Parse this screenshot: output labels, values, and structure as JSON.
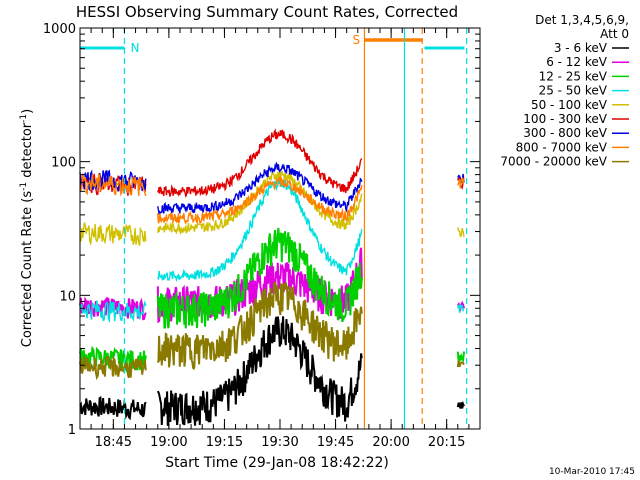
{
  "chart_data": {
    "type": "line",
    "title": "HESSI Observing Summary Count Rates, Corrected",
    "xlabel": "Start Time (29-Jan-08 18:42:22)",
    "ylabel_main": "Corrected Count Rate (s",
    "ylabel_exp1": "-1",
    "ylabel_mid": " detector",
    "ylabel_exp2": "-1",
    "ylabel_end": ")",
    "yscale": "log",
    "ylim": [
      1,
      1000
    ],
    "xlim_minutes": [
      18.6,
      20.4
    ],
    "x_ticks": [
      {
        "label": "18:45",
        "value": 18.75
      },
      {
        "label": "19:00",
        "value": 19.0
      },
      {
        "label": "19:15",
        "value": 19.25
      },
      {
        "label": "19:30",
        "value": 19.5
      },
      {
        "label": "19:45",
        "value": 19.75
      },
      {
        "label": "20:00",
        "value": 20.0
      },
      {
        "label": "20:15",
        "value": 20.25
      }
    ],
    "y_ticks": [
      {
        "label": "1",
        "value": 1
      },
      {
        "label": "10",
        "value": 10
      },
      {
        "label": "100",
        "value": 100
      },
      {
        "label": "1000",
        "value": 1000
      }
    ],
    "legend_header": [
      "Det 1,3,4,5,6,9,",
      "Att 0"
    ],
    "series": [
      {
        "name": "3 - 6 keV",
        "color": "#000000",
        "base": 1.5,
        "peak": 5.5,
        "pre": 1.5
      },
      {
        "name": "6 - 12 keV",
        "color": "#e000e0",
        "base": 9,
        "peak": 14,
        "pre": 8.5
      },
      {
        "name": "12 - 25 keV",
        "color": "#00d000",
        "base": 8,
        "peak": 25,
        "pre": 3.5
      },
      {
        "name": "25 - 50 keV",
        "color": "#00e0e0",
        "base": 14,
        "peak": 70,
        "pre": 8
      },
      {
        "name": "50 - 100 keV",
        "color": "#d0c000",
        "base": 32,
        "peak": 80,
        "pre": 30
      },
      {
        "name": "100 - 300 keV",
        "color": "#e00000",
        "base": 60,
        "peak": 160,
        "pre": 70
      },
      {
        "name": "300 - 800 keV",
        "color": "#0000e0",
        "base": 45,
        "peak": 90,
        "pre": 75
      },
      {
        "name": "800 - 7000 keV",
        "color": "#ff7f00",
        "base": 38,
        "peak": 70,
        "pre": 70
      },
      {
        "name": "7000 - 20000 keV",
        "color": "#8b7a00",
        "base": 4,
        "peak": 10,
        "pre": 3
      }
    ],
    "annotations": [
      {
        "label": "N",
        "color": "#00e0e0"
      },
      {
        "label": "S",
        "color": "#ff7f00"
      }
    ],
    "footer_date": "10-Mar-2010 17:45"
  }
}
